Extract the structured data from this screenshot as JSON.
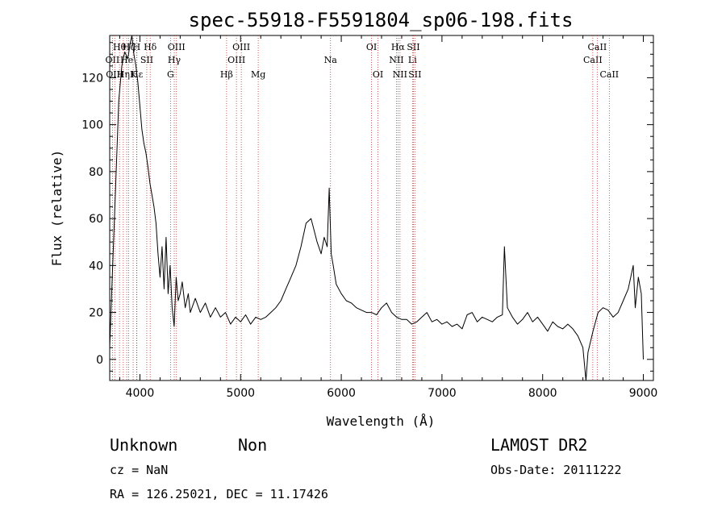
{
  "chart_data": {
    "type": "line",
    "title": "spec-55918-F5591804_sp06-198.fits",
    "xlabel": "Wavelength (Å)",
    "ylabel": "Flux (relative)",
    "xlim": [
      3700,
      9100
    ],
    "ylim": [
      -9,
      138
    ],
    "xticks": [
      "4000",
      "5000",
      "6000",
      "7000",
      "8000",
      "9000"
    ],
    "yticks": [
      "0",
      "20",
      "40",
      "60",
      "80",
      "100",
      "120"
    ],
    "grid": false,
    "legend": "none",
    "series": [
      {
        "x": [
          3700,
          3730,
          3760,
          3790,
          3820,
          3850,
          3880,
          3900,
          3920,
          3940,
          3960,
          3980,
          4000,
          4020,
          4040,
          4060,
          4080,
          4100,
          4120,
          4140,
          4160,
          4180,
          4200,
          4220,
          4240,
          4260,
          4280,
          4300,
          4320,
          4340,
          4360,
          4380,
          4400,
          4420,
          4450,
          4480,
          4500,
          4550,
          4600,
          4650,
          4700,
          4750,
          4800,
          4850,
          4900,
          4950,
          5000,
          5050,
          5100,
          5150,
          5200,
          5250,
          5300,
          5350,
          5400,
          5450,
          5500,
          5550,
          5600,
          5650,
          5700,
          5730,
          5760,
          5800,
          5830,
          5860,
          5880,
          5900,
          5920,
          5950,
          6000,
          6050,
          6100,
          6150,
          6200,
          6250,
          6300,
          6350,
          6400,
          6450,
          6500,
          6550,
          6600,
          6650,
          6700,
          6750,
          6800,
          6850,
          6900,
          6950,
          7000,
          7050,
          7100,
          7150,
          7200,
          7250,
          7300,
          7350,
          7400,
          7450,
          7500,
          7550,
          7600,
          7620,
          7650,
          7700,
          7750,
          7800,
          7850,
          7900,
          7950,
          8000,
          8050,
          8100,
          8150,
          8200,
          8250,
          8300,
          8350,
          8400,
          8430,
          8450,
          8500,
          8550,
          8600,
          8650,
          8700,
          8750,
          8800,
          8850,
          8900,
          8920,
          8950,
          8980,
          9000
        ],
        "y": [
          5,
          40,
          75,
          110,
          125,
          131,
          128,
          134,
          138,
          130,
          125,
          118,
          108,
          98,
          92,
          88,
          82,
          75,
          70,
          65,
          58,
          45,
          35,
          48,
          30,
          52,
          28,
          40,
          22,
          14,
          35,
          25,
          28,
          33,
          22,
          28,
          20,
          26,
          20,
          24,
          18,
          22,
          18,
          20,
          15,
          18,
          16,
          19,
          15,
          18,
          17,
          18,
          20,
          22,
          25,
          30,
          35,
          40,
          48,
          58,
          60,
          55,
          50,
          45,
          52,
          48,
          73,
          45,
          40,
          32,
          28,
          25,
          24,
          22,
          21,
          20,
          20,
          19,
          22,
          24,
          20,
          18,
          17,
          17,
          15,
          16,
          18,
          20,
          16,
          17,
          15,
          16,
          14,
          15,
          13,
          19,
          20,
          16,
          18,
          17,
          16,
          18,
          19,
          48,
          22,
          18,
          15,
          17,
          20,
          16,
          18,
          15,
          12,
          16,
          14,
          13,
          15,
          13,
          10,
          5,
          -10,
          3,
          12,
          20,
          22,
          21,
          18,
          20,
          25,
          30,
          40,
          22,
          35,
          28,
          0
        ]
      }
    ],
    "line_markers": [
      {
        "wavelength": 3727,
        "label": "OII",
        "row": 1
      },
      {
        "wavelength": 3750,
        "label": "OIII",
        "row": 2
      },
      {
        "wavelength": 3797,
        "label": "Hθ",
        "row": 0
      },
      {
        "wavelength": 3835,
        "label": "Hη",
        "row": 2
      },
      {
        "wavelength": 3869,
        "label": "He",
        "row": 1
      },
      {
        "wavelength": 3889,
        "label": "Hζ",
        "row": 0
      },
      {
        "wavelength": 3933,
        "label": "K",
        "row": 2
      },
      {
        "wavelength": 3968,
        "label": "H",
        "row": 0
      },
      {
        "wavelength": 3970,
        "label": "Hε",
        "row": 2
      },
      {
        "wavelength": 4068,
        "label": "SII",
        "row": 1
      },
      {
        "wavelength": 4102,
        "label": "Hδ",
        "row": 0
      },
      {
        "wavelength": 4304,
        "label": "G",
        "row": 2
      },
      {
        "wavelength": 4341,
        "label": "Hγ",
        "row": 1
      },
      {
        "wavelength": 4363,
        "label": "OIII",
        "row": 0
      },
      {
        "wavelength": 4861,
        "label": "Hβ",
        "row": 2
      },
      {
        "wavelength": 4959,
        "label": "OIII",
        "row": 1
      },
      {
        "wavelength": 5007,
        "label": "OIII",
        "row": 0
      },
      {
        "wavelength": 5175,
        "label": "Mg",
        "row": 2
      },
      {
        "wavelength": 5893,
        "label": "Na",
        "row": 1
      },
      {
        "wavelength": 6300,
        "label": "OI",
        "row": 0
      },
      {
        "wavelength": 6364,
        "label": "OI",
        "row": 2
      },
      {
        "wavelength": 6548,
        "label": "NII",
        "row": 1
      },
      {
        "wavelength": 6563,
        "label": "Hα",
        "row": 0
      },
      {
        "wavelength": 6583,
        "label": "NII",
        "row": 2
      },
      {
        "wavelength": 6707,
        "label": "Li",
        "row": 1
      },
      {
        "wavelength": 6716,
        "label": "SII",
        "row": 0
      },
      {
        "wavelength": 6731,
        "label": "SII",
        "row": 2
      },
      {
        "wavelength": 8498,
        "label": "CaII",
        "row": 1
      },
      {
        "wavelength": 8542,
        "label": "CaII",
        "row": 0
      },
      {
        "wavelength": 8662,
        "label": "CaII",
        "row": 2
      }
    ]
  },
  "info": {
    "classification": "Unknown",
    "subclass": "Non",
    "cz": "cz = NaN",
    "radec": "RA = 126.25021, DEC =  11.17426",
    "survey": "LAMOST DR2",
    "obs_date": "Obs-Date: 20111222"
  }
}
